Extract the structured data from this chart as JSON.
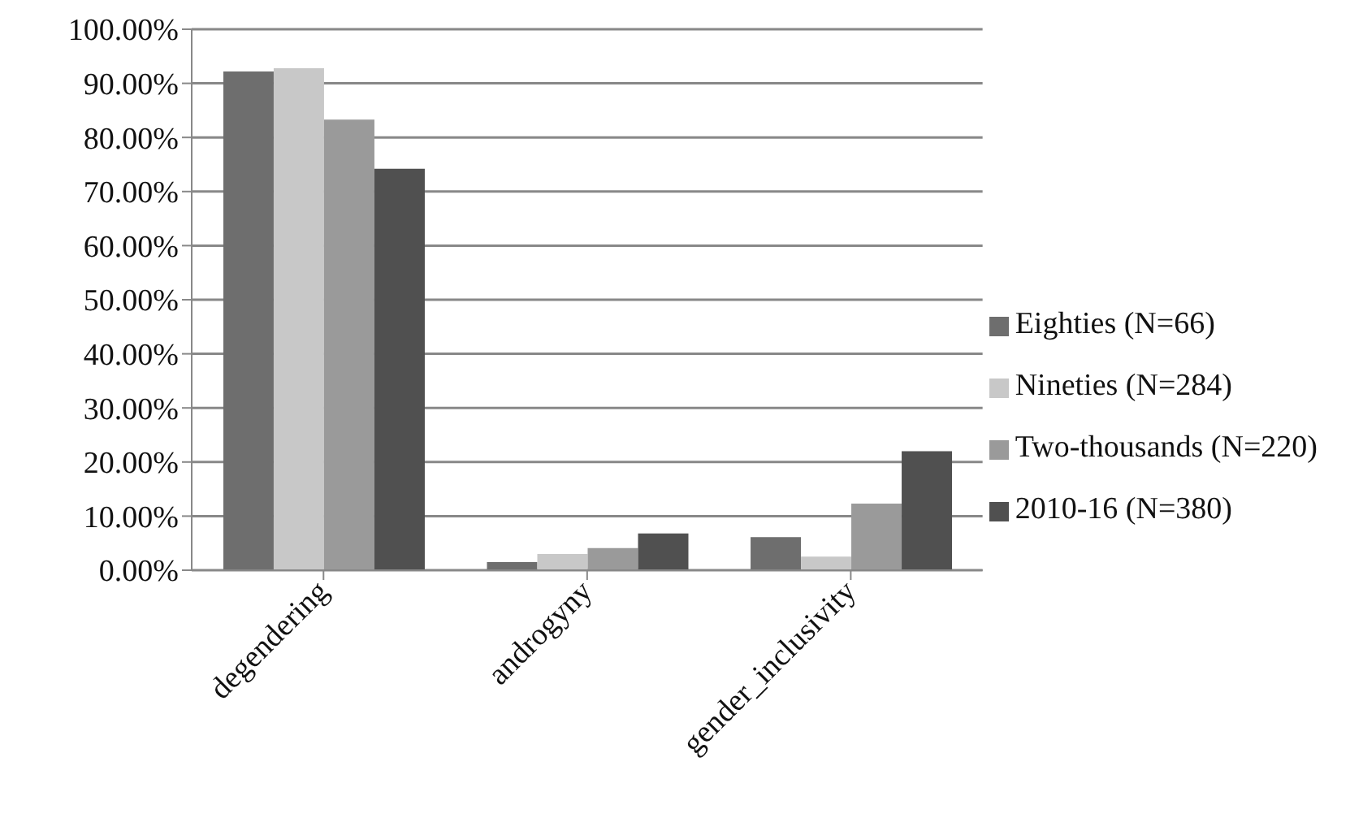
{
  "chart_data": {
    "type": "bar",
    "categories": [
      "degendering",
      "androgyny",
      "gender_inclusivity"
    ],
    "series": [
      {
        "name": "Eighties (N=66)",
        "color": "#6e6e6e",
        "values": [
          92.2,
          1.5,
          6.1
        ]
      },
      {
        "name": "Nineties (N=284)",
        "color": "#c8c8c8",
        "values": [
          92.8,
          3.0,
          2.5
        ]
      },
      {
        "name": "Two-thousands (N=220)",
        "color": "#9a9a9a",
        "values": [
          83.3,
          4.1,
          12.3
        ]
      },
      {
        "name": "2010-16 (N=380)",
        "color": "#505050",
        "values": [
          74.2,
          6.8,
          22.0
        ]
      }
    ],
    "ylim": [
      0,
      100
    ],
    "yticks": [
      {
        "value": 0,
        "label": "0.00%"
      },
      {
        "value": 10,
        "label": "10.00%"
      },
      {
        "value": 20,
        "label": "20.00%"
      },
      {
        "value": 30,
        "label": "30.00%"
      },
      {
        "value": 40,
        "label": "40.00%"
      },
      {
        "value": 50,
        "label": "50.00%"
      },
      {
        "value": 60,
        "label": "60.00%"
      },
      {
        "value": 70,
        "label": "70.00%"
      },
      {
        "value": 80,
        "label": "80.00%"
      },
      {
        "value": 90,
        "label": "90.00%"
      },
      {
        "value": 100,
        "label": "100.00%"
      }
    ],
    "grid": "y",
    "legend": "right"
  }
}
